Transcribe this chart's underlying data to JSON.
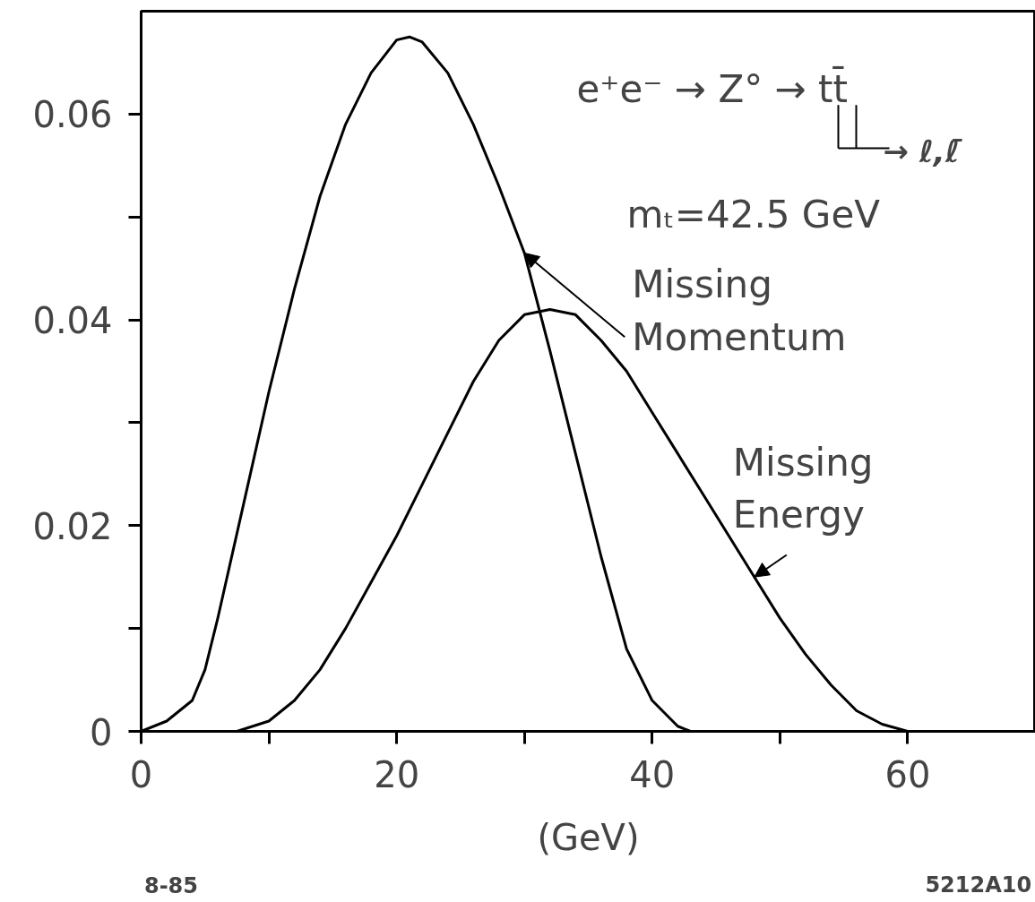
{
  "chart_data": {
    "type": "line",
    "xlabel": "(GeV)",
    "xlim": [
      0,
      70
    ],
    "ylim": [
      0,
      0.07
    ],
    "xticks": [
      0,
      {
        "value": 10,
        "label": null
      },
      20,
      {
        "value": 30,
        "label": null
      },
      40,
      {
        "value": 50,
        "label": null
      },
      60
    ],
    "yticks": [
      0,
      {
        "value": 0.01,
        "label": null
      },
      0.02,
      {
        "value": 0.03,
        "label": null
      },
      0.04,
      {
        "value": 0.05,
        "label": null
      },
      0.06
    ],
    "line_style": "solid",
    "series": [
      {
        "color": "#000000",
        "x": [
          0,
          2,
          4,
          5,
          6,
          8,
          10,
          12,
          14,
          16,
          18,
          20,
          21,
          22,
          24,
          26,
          28,
          30,
          32,
          34,
          36,
          38,
          40,
          42,
          43
        ],
        "values": [
          0,
          0.001,
          0.003,
          0.006,
          0.011,
          0.022,
          0.033,
          0.043,
          0.052,
          0.059,
          0.064,
          0.0672,
          0.0675,
          0.067,
          0.064,
          0.059,
          0.053,
          0.0465,
          0.037,
          0.027,
          0.017,
          0.008,
          0.003,
          0.0005,
          0
        ]
      },
      {
        "color": "#000000",
        "x": [
          7.5,
          10,
          12,
          14,
          16,
          18,
          20,
          22,
          24,
          26,
          28,
          30,
          32,
          34,
          36,
          38,
          40,
          42,
          44,
          46,
          48,
          50,
          52,
          54,
          56,
          58,
          60
        ],
        "values": [
          0,
          0.001,
          0.003,
          0.006,
          0.01,
          0.0145,
          0.019,
          0.024,
          0.029,
          0.034,
          0.038,
          0.0405,
          0.041,
          0.0405,
          0.038,
          0.035,
          0.031,
          0.027,
          0.023,
          0.019,
          0.015,
          0.011,
          0.0075,
          0.0045,
          0.002,
          0.0007,
          0
        ]
      }
    ],
    "annotations": [
      "e⁺e⁻ → Z° → tt̄",
      "→ ℓ,ℓ̄",
      "mₜ=42.5  GeV",
      "8-85",
      "5212A10",
      {
        "text": "Missing\nMomentum",
        "x": 30,
        "y": 0.0465
      },
      {
        "text": "Missing\nEnergy",
        "x": 48,
        "y": 0.015
      }
    ]
  }
}
